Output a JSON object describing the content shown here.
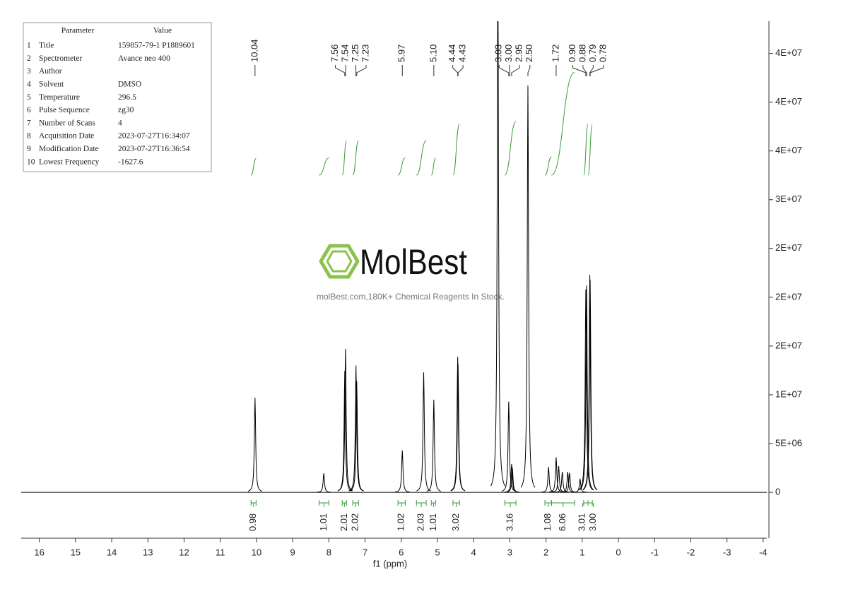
{
  "chart_data": {
    "type": "nmr",
    "xlabel": "f1 (ppm)",
    "xlim": [
      16.5,
      -4.1
    ],
    "xticks": [
      16,
      15,
      14,
      13,
      12,
      11,
      10,
      9,
      8,
      7,
      6,
      5,
      4,
      3,
      2,
      1,
      0,
      -1,
      -2,
      -3,
      -4
    ],
    "ylim": [
      -4700000,
      48300000
    ],
    "yticks": [
      0,
      {
        "value": 5000000,
        "label": "5E+06"
      },
      {
        "value": 10000000,
        "label": "1E+07"
      },
      {
        "value": 15000000,
        "label": "2E+07"
      },
      {
        "value": 20000000,
        "label": "2E+07"
      },
      {
        "value": 25000000,
        "label": "2E+07"
      },
      {
        "value": 30000000,
        "label": "3E+07"
      },
      {
        "value": 35000000,
        "label": "4E+07"
      },
      {
        "value": 40000000,
        "label": "4E+07"
      },
      {
        "value": 45000000,
        "label": "4E+07"
      }
    ],
    "color": "#000000",
    "x": [
      10.04,
      8.14,
      7.56,
      7.54,
      7.25,
      7.23,
      5.97,
      5.38,
      5.1,
      4.44,
      4.43,
      3.33,
      3.03,
      2.95,
      2.93,
      2.5,
      1.93,
      1.72,
      1.65,
      1.55,
      1.4,
      1.35,
      1.06,
      0.9,
      0.88,
      0.79,
      0.78
    ],
    "values": [
      9710000,
      1960000,
      12460000,
      14700000,
      13000000,
      11400000,
      4300000,
      12300000,
      9500000,
      13900000,
      13200000,
      55000000,
      9300000,
      2900000,
      2500000,
      41700000,
      2600000,
      3600000,
      2700000,
      2100000,
      2100000,
      2000000,
      1400000,
      20800000,
      21200000,
      22300000,
      21800000
    ],
    "peak_labels": {
      "values": [
        10.04,
        7.56,
        7.54,
        7.25,
        7.23,
        5.97,
        5.1,
        4.44,
        4.43,
        3.03,
        3,
        2.95,
        2.5,
        1.72,
        0.9,
        0.88,
        0.79,
        0.78
      ],
      "value_labels": [
        "10.04",
        "7.56",
        "7.54",
        "7.25",
        "7.23",
        "5.97",
        "5.10",
        "4.44",
        "4.43",
        "3.03",
        "3.00",
        "2.95",
        "2.50",
        "1.72",
        "0.90",
        "0.88",
        "0.79",
        "0.78"
      ]
    },
    "integrals": {
      "ranges": [
        [
          10.15,
          10.01
        ],
        [
          8.27,
          8.0
        ],
        [
          7.63,
          7.51
        ],
        [
          7.34,
          7.18
        ],
        [
          6.09,
          5.89
        ],
        [
          5.58,
          5.31
        ],
        [
          5.17,
          5.05
        ],
        [
          4.57,
          4.39
        ],
        [
          3.14,
          2.83
        ],
        [
          2.03,
          1.85
        ],
        [
          1.85,
          1.21
        ],
        [
          0.96,
          0.84
        ],
        [
          0.84,
          0.72
        ]
      ],
      "values": [
        0.98,
        1.01,
        2.01,
        2.02,
        1.02,
        2.03,
        1.01,
        3.02,
        3.16,
        1.08,
        6.06,
        3.01,
        3
      ],
      "value_labels": [
        "0.98",
        "1.01",
        "2.01",
        "2.02",
        "1.02",
        "2.03",
        "1.01",
        "3.02",
        "3.16",
        "1.08",
        "6.06",
        "3.01",
        "3.00"
      ],
      "color": "#3a9a3a"
    }
  },
  "parameters_table": {
    "header": [
      "Parameter",
      "Value"
    ],
    "rows": [
      {
        "no": 1,
        "parameter": "Title",
        "value": "159857-79-1 P1889601"
      },
      {
        "no": 2,
        "parameter": "Spectrometer",
        "value": "Avance neo 400"
      },
      {
        "no": 3,
        "parameter": "Author"
      },
      {
        "no": 4,
        "parameter": "Solvent",
        "value": "DMSO"
      },
      {
        "no": 5,
        "parameter": "Temperature",
        "value": "296.5"
      },
      {
        "no": 6,
        "parameter": "Pulse Sequence",
        "value": "zg30"
      },
      {
        "no": 7,
        "parameter": "Number of Scans",
        "value": "4"
      },
      {
        "no": 8,
        "parameter": "Acquisition Date",
        "value": "2023-07-27T16:34:07"
      },
      {
        "no": 9,
        "parameter": "Modification Date",
        "value": "2023-07-27T16:36:54"
      },
      {
        "no": 10,
        "parameter": "Lowest Frequency",
        "value": "-1627.6"
      }
    ]
  },
  "watermark": {
    "brand": "MolBest",
    "tagline": "molBest.com,180K+ Chemical Reagents In Stock."
  }
}
